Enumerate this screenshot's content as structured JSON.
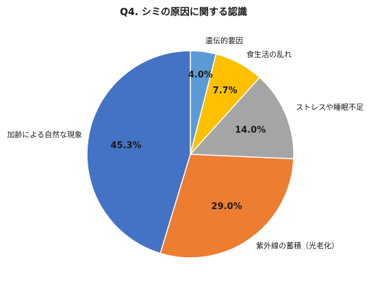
{
  "chart_data": {
    "type": "pie",
    "title": "Q4. シミの原因に関する認識",
    "start_angle_deg": 0,
    "direction": "clockwise",
    "legend": "none",
    "slices": [
      {
        "label": "遺伝的要因",
        "value": 4.0,
        "value_label": "4.0%",
        "color": "#5B9BD5"
      },
      {
        "label": "食生活の乱れ",
        "value": 7.7,
        "value_label": "7.7%",
        "color": "#FFC000"
      },
      {
        "label": "ストレスや睡眠不足",
        "value": 14.0,
        "value_label": "14.0%",
        "color": "#A5A5A5"
      },
      {
        "label": "紫外線の蓄積（光老化）",
        "value": 29.0,
        "value_label": "29.0%",
        "color": "#ED7D31"
      },
      {
        "label": "加齢による自然な現象",
        "value": 45.3,
        "value_label": "45.3%",
        "color": "#4472C4"
      }
    ]
  }
}
